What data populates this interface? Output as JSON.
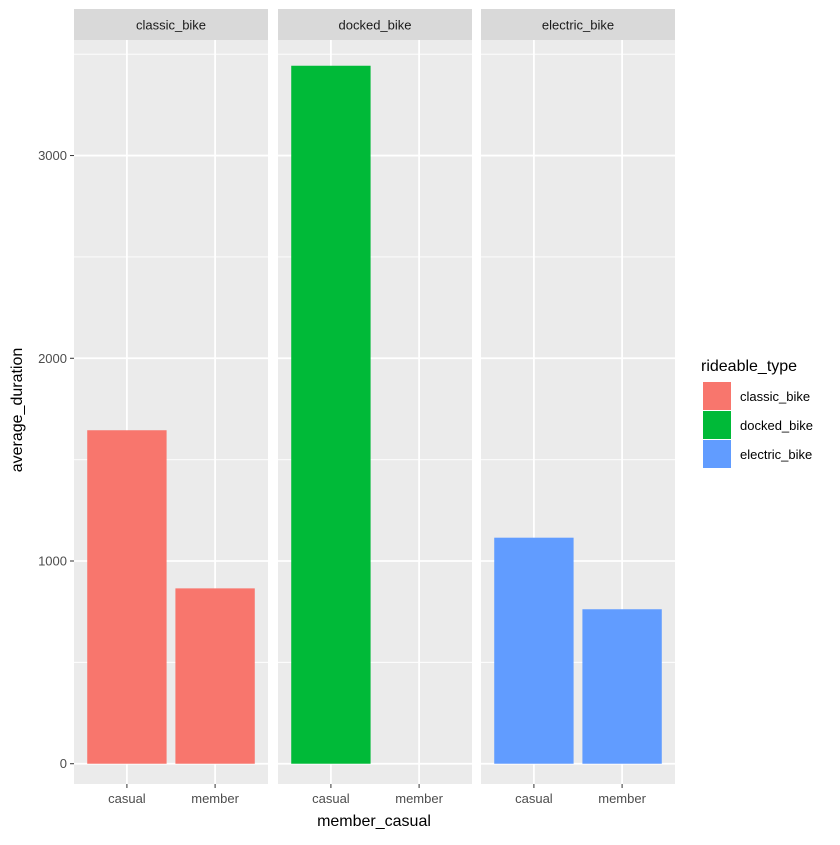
{
  "chart_data": {
    "type": "bar",
    "xlabel": "member_casual",
    "ylabel": "average_duration",
    "ylim": [
      -100,
      3570
    ],
    "yticks": [
      0,
      1000,
      2000,
      3000
    ],
    "categories": [
      "casual",
      "member"
    ],
    "facets": [
      {
        "strip": "classic_bike",
        "values": [
          1645,
          865
        ]
      },
      {
        "strip": "docked_bike",
        "values": [
          3443,
          null
        ]
      },
      {
        "strip": "electric_bike",
        "values": [
          1115,
          762
        ]
      }
    ],
    "legend": {
      "title": "rideable_type",
      "position": "right",
      "entries": [
        {
          "label": "classic_bike",
          "color": "#F8766D"
        },
        {
          "label": "docked_bike",
          "color": "#00BA38"
        },
        {
          "label": "electric_bike",
          "color": "#619CFF"
        }
      ]
    },
    "grid": true,
    "colors": {
      "panel": "#EBEBEB",
      "strip": "#D9D9D9",
      "grid_major": "#FFFFFF"
    }
  }
}
